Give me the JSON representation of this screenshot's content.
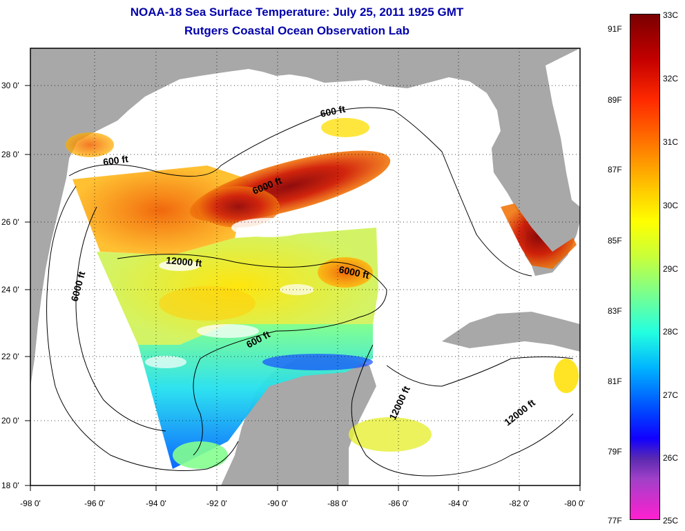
{
  "title_line1": "NOAA-18 Sea Surface Temperature:  July 25, 2011 1925 GMT",
  "title_line2": "Rutgers Coastal Ocean Observation Lab",
  "x_ticks": [
    "-98 0'",
    "-96 0'",
    "-94 0'",
    "-92 0'",
    "-90 0'",
    "-88 0'",
    "-86 0'",
    "-84 0'",
    "-82 0'",
    "-80 0'"
  ],
  "y_ticks": [
    "18 0'",
    "20 0'",
    "22 0'",
    "24 0'",
    "26 0'",
    "28 0'",
    "30 0'"
  ],
  "colorbar": {
    "celsius": [
      "33C",
      "32C",
      "31C",
      "30C",
      "29C",
      "28C",
      "27C",
      "26C",
      "25C"
    ],
    "fahrenheit": [
      "91F",
      "89F",
      "87F",
      "85F",
      "83F",
      "81F",
      "79F",
      "77F"
    ]
  },
  "contour_labels": [
    "600 ft",
    "600 ft",
    "6000 ft",
    "12000 ft",
    "6000 ft",
    "6000 ft",
    "600 ft",
    "12000 ft",
    "12000 ft"
  ],
  "colors": {
    "land": "#a8a8a8",
    "title": "#0000aa",
    "no_data_water": "#ffffff"
  }
}
